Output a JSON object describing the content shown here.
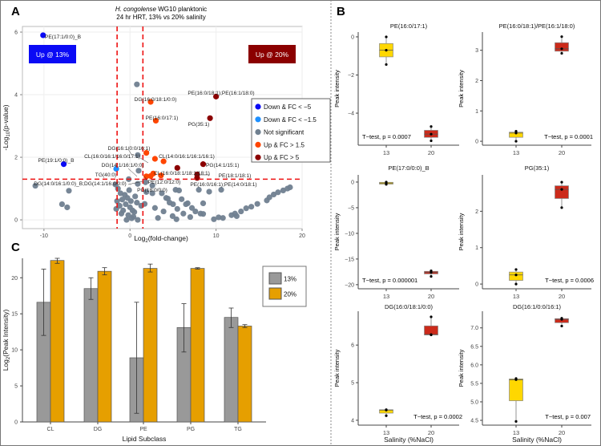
{
  "panel_labels": {
    "a": "A",
    "b": "B",
    "c": "C"
  },
  "colors": {
    "down5": "#0a0af5",
    "down15": "#1e90ff",
    "ns": "#708090",
    "up15": "#ff4500",
    "up5": "#8b0000",
    "threshold": "#ee1111",
    "bar13": "#999999",
    "bar20": "#e69f00",
    "box13": "#ffd700",
    "box20": "#cc2a1a"
  },
  "chart_data": [
    {
      "type": "scatter",
      "id": "volcano",
      "title_italic": "H. congolense",
      "title_rest": " WG10 planktonic",
      "subtitle": "24 hr HRT, 13% vs 20% salinity",
      "xlabel": {
        "pre": "Log",
        "sub": "2",
        "post": "(fold-change)"
      },
      "ylabel": {
        "pre": "-Log",
        "sub": "10",
        "post": "(p-value)"
      },
      "xlim": [
        -12.5,
        20
      ],
      "ylim": [
        -0.28,
        6.18
      ],
      "xticks": [
        -10,
        0,
        10,
        20
      ],
      "yticks": [
        0,
        2,
        4,
        6
      ],
      "grid": true,
      "thresholds": {
        "log2fc": [
          -1.5,
          1.5
        ],
        "neglog10p": 1.3
      },
      "annotations": {
        "left": "Up @ 13%",
        "right": "Up @ 20%"
      },
      "legend": {
        "placement": "right",
        "items": [
          {
            "key": "down5",
            "label": "Down & FC < −5"
          },
          {
            "key": "down15",
            "label": "Down & FC < −1.5"
          },
          {
            "key": "ns",
            "label": "Not significant"
          },
          {
            "key": "up15",
            "label": "Up & FC > 1.5"
          },
          {
            "key": "up5",
            "label": "Up & FC > 5"
          }
        ]
      },
      "series": [
        {
          "key": "ns",
          "points": [
            [
              0.8,
              4.33
            ],
            [
              -11,
              1.09
            ],
            [
              -7.1,
              0.93
            ],
            [
              -7.9,
              0.5
            ],
            [
              -7.3,
              0.4
            ],
            [
              0.9,
              2.07
            ],
            [
              1.0,
              1.57
            ],
            [
              -0.15,
              1.3
            ],
            [
              -1.7,
              1.13
            ],
            [
              5.3,
              0.96
            ],
            [
              5.7,
              0.94
            ],
            [
              8.0,
              0.96
            ],
            [
              9.2,
              0.9
            ],
            [
              10.6,
              0.96
            ],
            [
              8.5,
              0.53
            ],
            [
              4.2,
              0.7
            ],
            [
              6.0,
              0.66
            ],
            [
              6.7,
              0.53
            ],
            [
              7.6,
              0.27
            ],
            [
              8.5,
              0.19
            ],
            [
              9.75,
              0.02
            ],
            [
              11.8,
              0.15
            ],
            [
              12.9,
              0.27
            ],
            [
              14.1,
              0.42
            ],
            [
              14.8,
              0.51
            ],
            [
              15.9,
              0.62
            ],
            [
              16.7,
              0.81
            ],
            [
              17.8,
              0.94
            ],
            [
              18.6,
              1.04
            ],
            [
              3.25,
              0.06
            ],
            [
              4.95,
              0.12
            ],
            [
              5.4,
              0.02
            ],
            [
              7.0,
              0.09
            ],
            [
              10.3,
              0.08
            ],
            [
              10.8,
              0.06
            ],
            [
              12.4,
              0.12
            ],
            [
              2.9,
              0.38
            ],
            [
              3.9,
              0.27
            ],
            [
              1.7,
              0.51
            ],
            [
              1.9,
              0.89
            ],
            [
              2.6,
              0.85
            ],
            [
              3.7,
              0.85
            ],
            [
              4.4,
              0.68
            ],
            [
              -1.5,
              0.6
            ],
            [
              -1.2,
              0.45
            ],
            [
              -0.8,
              0.3
            ],
            [
              -0.5,
              0.5
            ],
            [
              -0.3,
              0.7
            ],
            [
              0,
              0.4
            ],
            [
              0.3,
              0.3
            ],
            [
              -0.2,
              0.15
            ],
            [
              0.4,
              0.1
            ],
            [
              -1.0,
              0.2
            ],
            [
              -1.6,
              0.35
            ],
            [
              0.8,
              0.55
            ],
            [
              -0.6,
              0.8
            ],
            [
              0.6,
              0.75
            ],
            [
              -0.1,
              0.95
            ],
            [
              -1.4,
              1.0
            ],
            [
              0.9,
              1.15
            ],
            [
              1.8,
              1.2
            ],
            [
              2.6,
              1.1
            ],
            [
              0.2,
              0.05
            ],
            [
              0.9,
              0.0
            ],
            [
              -0.4,
              0.0
            ],
            [
              1.3,
              0.45
            ],
            [
              5.0,
              0.5
            ],
            [
              5.5,
              0.35
            ],
            [
              6.2,
              0.2
            ],
            [
              7.2,
              0.38
            ],
            [
              6.5,
              0.5
            ],
            [
              4.6,
              0.55
            ],
            [
              8.2,
              0.2
            ],
            [
              13.5,
              0.37
            ],
            [
              16.2,
              0.72
            ],
            [
              12.2,
              0.2
            ],
            [
              17.2,
              0.88
            ],
            [
              18.3,
              1.0
            ],
            [
              -0.9,
              0.65
            ],
            [
              0.1,
              0.6
            ],
            [
              -1.1,
              0.85
            ],
            [
              0.5,
              0.25
            ]
          ]
        },
        {
          "key": "down5",
          "points": [
            [
              -10.1,
              5.9
            ],
            [
              -7.7,
              1.78
            ]
          ]
        },
        {
          "key": "down15",
          "points": [
            [
              -1.6,
              1.63
            ]
          ]
        },
        {
          "key": "up15",
          "points": [
            [
              2.4,
              3.77
            ],
            [
              3.0,
              3.17
            ],
            [
              1.9,
              2.14
            ],
            [
              2.9,
              1.95
            ],
            [
              3.9,
              1.87
            ],
            [
              1.9,
              1.39
            ],
            [
              2.4,
              1.4
            ],
            [
              3.6,
              1.42
            ],
            [
              2.7,
              1.48
            ]
          ]
        },
        {
          "key": "up5",
          "points": [
            [
              10.0,
              3.94
            ],
            [
              9.3,
              3.25
            ],
            [
              8.5,
              1.78
            ],
            [
              5.5,
              1.66
            ],
            [
              7.8,
              1.45
            ],
            [
              7.8,
              1.34
            ]
          ]
        }
      ],
      "point_labels": [
        "PE(17:1/0:0)_B",
        "PE(19:1/0:0)_B",
        "DG(16:0/18:1/0:0)",
        "PE(16:0/17:1)",
        "PE(16:0/18:1);PE(16:1/18:0)",
        "PG(35:1)",
        "DG(16:1/0:0/16:1)",
        "CL(16:0/16:1/16:0/17:1)",
        "CL(14:0/16:1/16:1/16:1)",
        "DG(14:1/16:1/0:0)",
        "PG(14:1/15:1)",
        "TG(40:0)",
        "CL(16:0/18:1/18:1/18:1)",
        "PE(18:1/18:1)",
        "DG(14:0/16:1/0:0)_B;DG(14:1/16:0/0:0)",
        "PE(12:0/12:0)",
        "PE(16:0/16:1);PE(14:0/18:1)",
        "PG(18:0/0:0)"
      ]
    },
    {
      "type": "box",
      "id": "boxplots",
      "xlabel": "Salinity (%NaCl)",
      "ylabel": "Peak intensity",
      "categories": [
        "13",
        "20"
      ],
      "panels": [
        {
          "title": "PE(16:0/17:1)",
          "ylim": [
            -5.68,
            0.25
          ],
          "yticks": [
            0,
            -2,
            -4
          ],
          "ytick_labels": [
            "0",
            "−2",
            "−4"
          ],
          "p_text": "T−test, p = 0.0007",
          "groups": [
            {
              "q1": -1.05,
              "median": -0.7,
              "q3": -0.35,
              "points": [
                0,
                -0.7,
                -1.45
              ]
            },
            {
              "q1": -5.27,
              "median": -5.1,
              "q3": -4.9,
              "points": [
                -4.7,
                -5.1,
                -5.45
              ]
            }
          ]
        },
        {
          "title": "PE(16:0/18:1)/PE(16:1/18:0)",
          "ylim": [
            -0.13,
            3.6
          ],
          "yticks": [
            0,
            1,
            2,
            3
          ],
          "ytick_labels": [
            "0",
            "1",
            "2",
            "3"
          ],
          "p_text": "T−test, p = 0.0001",
          "groups": [
            {
              "q1": 0.13,
              "median": 0.27,
              "q3": 0.3,
              "points": [
                0,
                0.27,
                0.33
              ]
            },
            {
              "q1": 2.97,
              "median": 3.05,
              "q3": 3.25,
              "points": [
                2.9,
                3.05,
                3.45
              ]
            }
          ]
        },
        {
          "title": "PE(17:0/0:0)_B",
          "ylim": [
            -20.8,
            1.4
          ],
          "yticks": [
            0,
            -5,
            -10,
            -15,
            -20
          ],
          "ytick_labels": [
            "0",
            "−5",
            "−10",
            "−15",
            "−20"
          ],
          "p_text": "T−test, p = 0.000001",
          "groups": [
            {
              "q1": -0.4,
              "median": -0.2,
              "q3": -0.05,
              "points": [
                0,
                -0.2,
                -0.45
              ]
            },
            {
              "q1": -17.9,
              "median": -17.6,
              "q3": -17.4,
              "points": [
                -17.3,
                -17.6,
                -18.4
              ]
            }
          ]
        },
        {
          "title": "PG(35:1)",
          "ylim": [
            -0.13,
            3.0
          ],
          "yticks": [
            0,
            1,
            2
          ],
          "ytick_labels": [
            "0",
            "1",
            "2"
          ],
          "p_text": "T−test, p = 0.0006",
          "groups": [
            {
              "q1": 0.1,
              "median": 0.25,
              "q3": 0.33,
              "points": [
                0,
                0.25,
                0.4
              ]
            },
            {
              "q1": 2.35,
              "median": 2.6,
              "q3": 2.7,
              "points": [
                2.1,
                2.6,
                2.8
              ]
            }
          ]
        },
        {
          "title": "DG(16:0/18:1/0:0)",
          "ylim": [
            3.87,
            6.9
          ],
          "yticks": [
            4,
            5,
            6
          ],
          "ytick_labels": [
            "4",
            "5",
            "6"
          ],
          "p_text": "T−test, p = 0.0002",
          "groups": [
            {
              "q1": 4.19,
              "median": 4.27,
              "q3": 4.28,
              "points": [
                4.12,
                4.27,
                4.28
              ]
            },
            {
              "q1": 6.27,
              "median": 6.28,
              "q3": 6.51,
              "points": [
                6.27,
                6.28,
                6.75
              ]
            }
          ]
        },
        {
          "title": "DG(16:1/0:0/16:1)",
          "ylim": [
            4.37,
            7.45
          ],
          "yticks": [
            4.5,
            5,
            5.5,
            6,
            6.5,
            7
          ],
          "ytick_labels": [
            "4.5",
            "5.0",
            "5.5",
            "6.0",
            "6.5",
            "7.0"
          ],
          "p_text": "T−test, p = 0.007",
          "groups": [
            {
              "q1": 5.03,
              "median": 5.6,
              "q3": 5.62,
              "points": [
                4.47,
                5.6,
                5.63
              ]
            },
            {
              "q1": 7.14,
              "median": 7.23,
              "q3": 7.25,
              "points": [
                7.05,
                7.23,
                7.26
              ]
            }
          ]
        }
      ]
    },
    {
      "type": "bar",
      "id": "subclass-bars",
      "categories": [
        "CL",
        "DG",
        "PE",
        "PG",
        "TG"
      ],
      "xlabel": "Lipid Subclass",
      "ylabel": {
        "pre": "Log",
        "sub": "2",
        "post": "(Peak Intensity)"
      },
      "ylim": [
        0,
        22.7
      ],
      "yticks": [
        0,
        5,
        10,
        15,
        20
      ],
      "legend": {
        "placement": "top-right",
        "items": [
          "13%",
          "20%"
        ]
      },
      "series": [
        {
          "name": "13%",
          "key": "bar13",
          "values": [
            16.6,
            18.5,
            8.9,
            13.1,
            14.5
          ],
          "err_low": [
            12.0,
            17.0,
            1.2,
            9.7,
            13.1
          ],
          "err_high": [
            21.2,
            20.0,
            16.6,
            16.4,
            15.8
          ]
        },
        {
          "name": "20%",
          "key": "bar20",
          "values": [
            22.4,
            20.9,
            21.3,
            21.3,
            13.3
          ],
          "err_low": [
            22.0,
            20.4,
            20.8,
            21.2,
            13.1
          ],
          "err_high": [
            22.7,
            21.4,
            21.9,
            21.4,
            13.5
          ]
        }
      ]
    }
  ]
}
